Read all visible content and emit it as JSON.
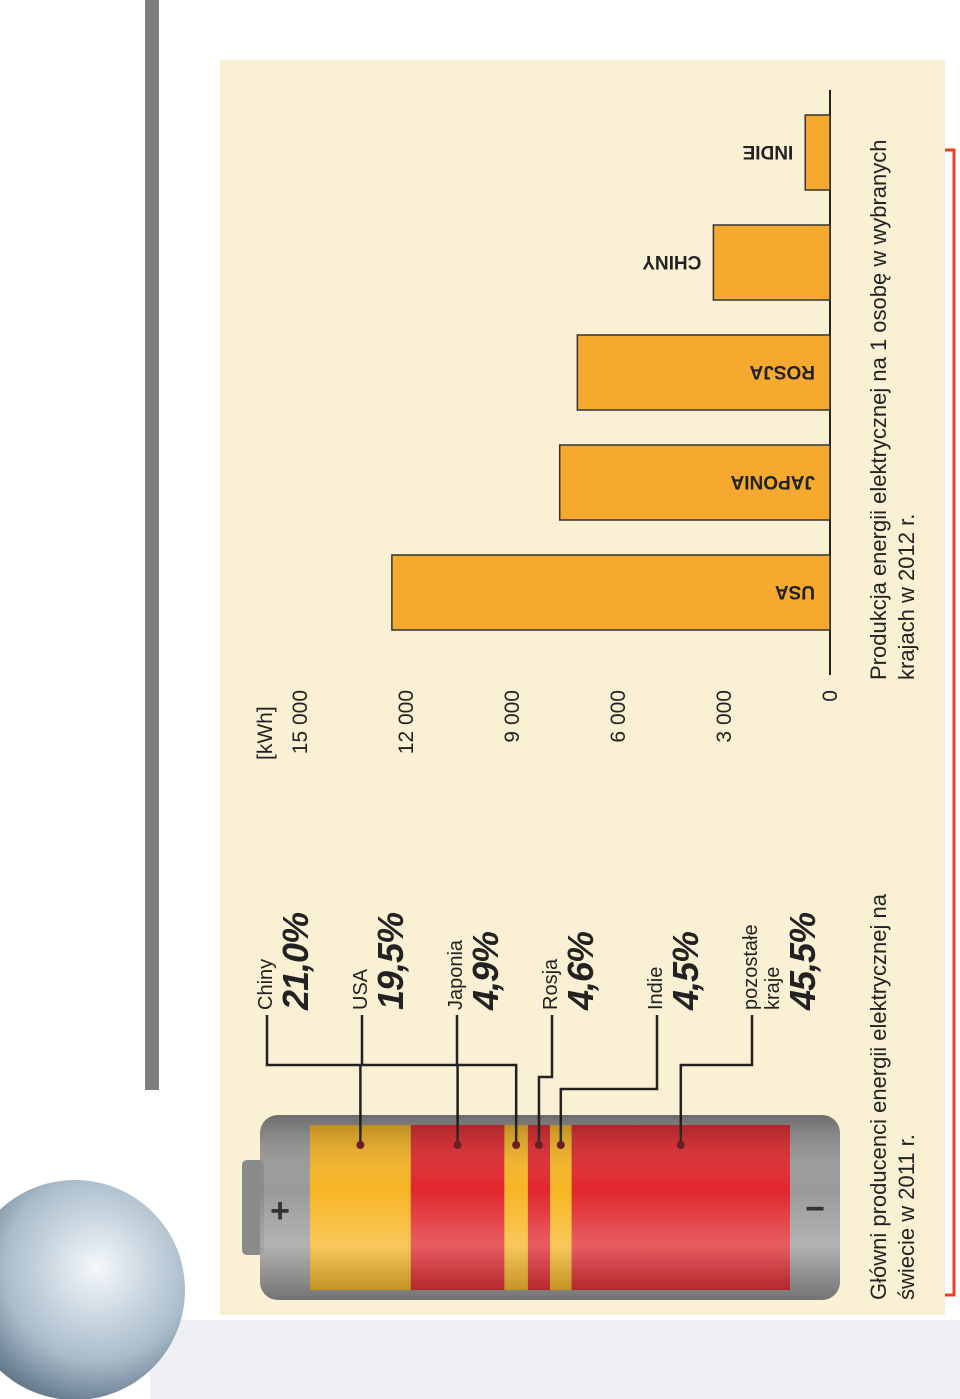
{
  "chart_data": [
    {
      "type": "battery",
      "title": "Główni producenci energii elektrycznej na świecie w 2011 r.",
      "categories": [
        "Chiny",
        "USA",
        "Japonia",
        "Rosja",
        "Indie",
        "pozostałe kraje"
      ],
      "values": [
        21.0,
        19.5,
        4.9,
        4.6,
        4.5,
        45.5
      ],
      "value_labels": [
        "21,0%",
        "19,5%",
        "4,9%",
        "4,6%",
        "4,5%",
        "45,5%"
      ],
      "colors": [
        "#f7b523",
        "#e0272c",
        "#f7b523",
        "#e0272c",
        "#f7b523",
        "#e0272c"
      ],
      "terminals": [
        "+",
        "−"
      ]
    },
    {
      "type": "bar",
      "title": "Produkcja energii elektrycznej na 1 osobę w wybranych krajach w 2012 r.",
      "y_label": "[kWh]",
      "categories": [
        "USA",
        "JAPONIA",
        "ROSJA",
        "CHINY",
        "INDIE"
      ],
      "values": [
        12400,
        7650,
        7150,
        3300,
        700
      ],
      "color": "#f5a92e",
      "ylim": [
        0,
        15000
      ],
      "yticks": [
        0,
        {
          "value": 3000,
          "label": "3 000"
        },
        {
          "value": 6000,
          "label": "6 000"
        },
        {
          "value": 9000,
          "label": "9 000"
        },
        {
          "value": 12000,
          "label": "12 000"
        },
        {
          "value": 15000,
          "label": "15 000"
        }
      ]
    }
  ]
}
